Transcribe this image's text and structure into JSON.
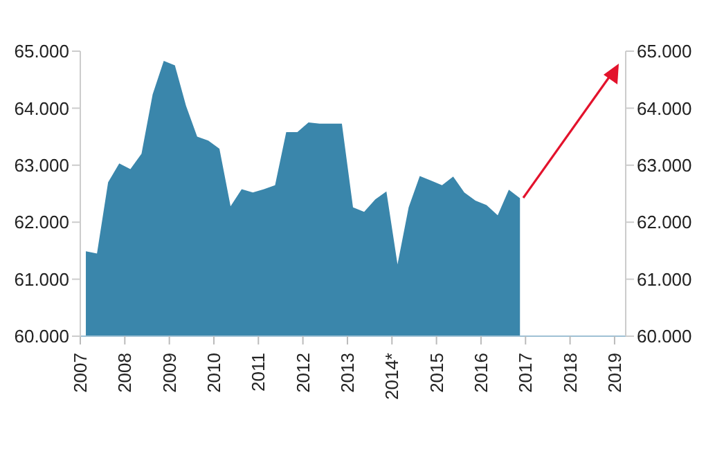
{
  "chart_data": {
    "type": "area",
    "x": [
      2007.125,
      2007.375,
      2007.625,
      2007.875,
      2008.125,
      2008.375,
      2008.625,
      2008.875,
      2009.125,
      2009.375,
      2009.625,
      2009.875,
      2010.125,
      2010.375,
      2010.625,
      2010.875,
      2011.125,
      2011.375,
      2011.625,
      2011.875,
      2012.125,
      2012.375,
      2012.625,
      2012.875,
      2013.125,
      2013.375,
      2013.625,
      2013.875,
      2014.125,
      2014.375,
      2014.625,
      2014.875,
      2015.125,
      2015.375,
      2015.625,
      2015.875,
      2016.125,
      2016.375,
      2016.625,
      2016.875
    ],
    "series": [
      {
        "color": "#3a86ab",
        "values": [
          61.49,
          61.45,
          62.7,
          63.03,
          62.93,
          63.2,
          64.24,
          64.83,
          64.75,
          64.04,
          63.5,
          63.43,
          63.29,
          62.28,
          62.58,
          62.52,
          62.58,
          62.65,
          63.58,
          63.58,
          63.75,
          63.73,
          63.73,
          63.73,
          62.26,
          62.18,
          62.4,
          62.54,
          61.26,
          62.26,
          62.81,
          62.73,
          62.65,
          62.8,
          62.52,
          62.38,
          62.3,
          62.12,
          62.57,
          62.42
        ]
      }
    ],
    "xlim": [
      2007,
      2019.25
    ],
    "xticks": [
      2007,
      2008,
      2009,
      2010,
      2011,
      2012,
      2013,
      {
        "value": 2014,
        "label": "2014*"
      },
      2015,
      2016,
      2017,
      2018,
      2019
    ],
    "ylim": [
      60,
      65
    ],
    "yticks": [
      {
        "value": 60,
        "label": "60.000"
      },
      {
        "value": 61,
        "label": "61.000"
      },
      {
        "value": 62,
        "label": "62.000"
      },
      {
        "value": 63,
        "label": "63.000"
      },
      {
        "value": 64,
        "label": "64.000"
      },
      {
        "value": 65,
        "label": "65.000"
      }
    ],
    "y2lim": [
      60,
      65
    ],
    "y2ticks": [
      {
        "value": 60,
        "label": "60.000"
      },
      {
        "value": 61,
        "label": "61.000"
      },
      {
        "value": 62,
        "label": "62.000"
      },
      {
        "value": 63,
        "label": "63.000"
      },
      {
        "value": 64,
        "label": "64.000"
      },
      {
        "value": 65,
        "label": "65.000"
      }
    ]
  }
}
